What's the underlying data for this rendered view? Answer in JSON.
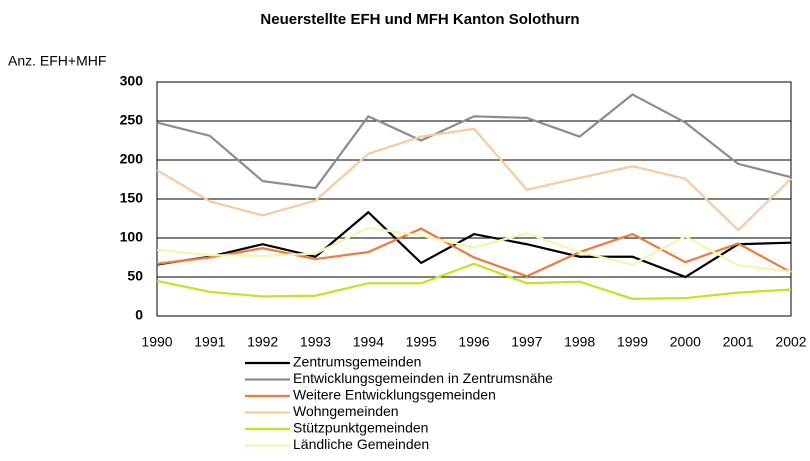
{
  "chart_data": {
    "type": "line",
    "title": "Neuerstellte EFH und MFH Kanton Solothurn",
    "y_label": "Anz. EFH+MHF",
    "x": [
      1990,
      1991,
      1992,
      1993,
      1994,
      1995,
      1996,
      1997,
      1998,
      1999,
      2000,
      2001,
      2002
    ],
    "xlim": [
      1990,
      2002
    ],
    "ylim": [
      0,
      300
    ],
    "yticks": [
      0,
      50,
      100,
      150,
      200,
      250,
      300
    ],
    "grid": true,
    "series": [
      {
        "name": "Zentrumsgemeinden",
        "color": "#000000",
        "values": [
          66,
          76,
          92,
          76,
          133,
          68,
          105,
          92,
          76,
          76,
          50,
          92,
          94
        ]
      },
      {
        "name": "Entwicklungsgemeinden in Zentrumsnähe",
        "color": "#8c8c8c",
        "values": [
          248,
          231,
          173,
          164,
          256,
          225,
          256,
          254,
          230,
          284,
          248,
          195,
          178
        ]
      },
      {
        "name": "Weitere Entwicklungsgemeinden",
        "color": "#f07a3a",
        "values": [
          67,
          75,
          87,
          73,
          82,
          112,
          75,
          51,
          82,
          105,
          69,
          93,
          56
        ]
      },
      {
        "name": "Wohngemeinden",
        "color": "#f9c9a0",
        "values": [
          187,
          147,
          129,
          148,
          208,
          230,
          240,
          162,
          177,
          192,
          176,
          110,
          176
        ]
      },
      {
        "name": "Stützpunktgemeinden",
        "color": "#c8e020",
        "values": [
          45,
          31,
          25,
          26,
          42,
          42,
          67,
          42,
          44,
          22,
          23,
          30,
          34
        ]
      },
      {
        "name": "Ländliche Gemeinden",
        "color": "#f0f8b0",
        "values": [
          85,
          78,
          77,
          80,
          113,
          103,
          88,
          106,
          82,
          66,
          102,
          65,
          57
        ]
      }
    ]
  }
}
